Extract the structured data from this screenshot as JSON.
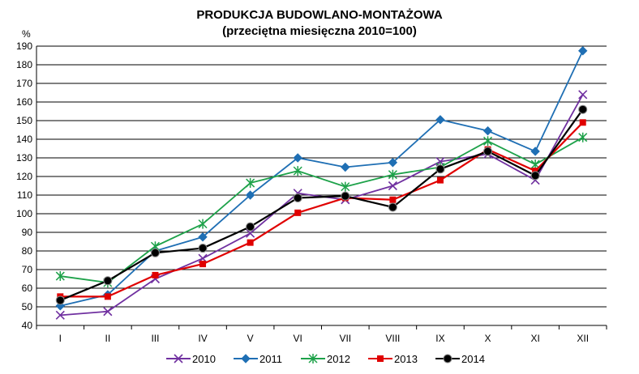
{
  "chart_data": {
    "type": "line",
    "title": "PRODUKCJA BUDOWLANO-MONTAŻOWA",
    "subtitle": "(przeciętna miesięczna 2010=100)",
    "ylabel": "%",
    "xlabel": "",
    "categories": [
      "I",
      "II",
      "III",
      "IV",
      "V",
      "VI",
      "VII",
      "VIII",
      "IX",
      "X",
      "XI",
      "XII"
    ],
    "ylim": [
      40,
      190
    ],
    "yticks": [
      "40",
      "50",
      "60",
      "70",
      "80",
      "90",
      "100",
      "110",
      "120",
      "130",
      "140",
      "150",
      "160",
      "170",
      "180",
      "190"
    ],
    "grid": true,
    "legend_position": "bottom",
    "series": [
      {
        "name": "2010",
        "color": "#7030a0",
        "marker": "x",
        "values": [
          45.5,
          47.5,
          65,
          76,
          89.5,
          111,
          107.5,
          115,
          128,
          132,
          118,
          164
        ]
      },
      {
        "name": "2011",
        "color": "#1f6fb4",
        "marker": "diamond",
        "values": [
          50.5,
          56.5,
          80,
          87.5,
          110,
          130,
          125,
          127.5,
          150.5,
          144.5,
          133.5,
          187.5
        ]
      },
      {
        "name": "2012",
        "color": "#1ea24a",
        "marker": "star",
        "values": [
          66.5,
          63,
          82.5,
          94.5,
          116.5,
          123,
          114.5,
          121,
          125,
          139,
          126.5,
          141
        ]
      },
      {
        "name": "2013",
        "color": "#e00000",
        "marker": "square",
        "values": [
          55.5,
          55.5,
          67,
          73,
          84.5,
          100.5,
          108.5,
          107.5,
          118,
          134.5,
          123,
          149
        ]
      },
      {
        "name": "2014",
        "color": "#000000",
        "marker": "circle",
        "values": [
          53.5,
          64,
          79,
          81.5,
          93,
          108.5,
          109.5,
          103.5,
          124,
          133.5,
          120.5,
          156
        ]
      }
    ]
  }
}
